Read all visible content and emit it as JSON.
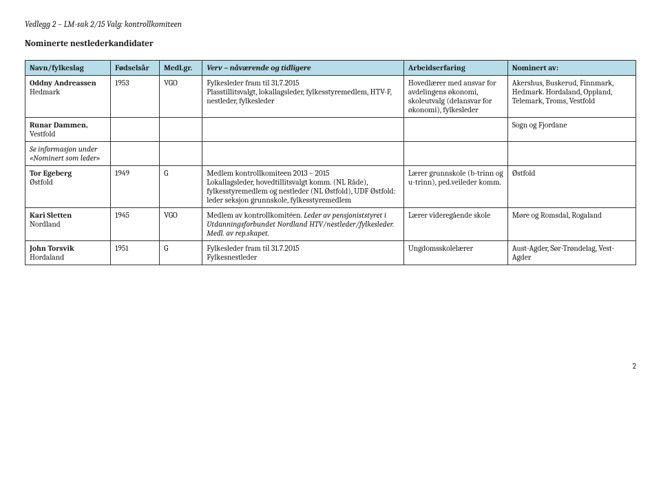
{
  "doc_header": "Vedlegg 2 – LM-sak 2/15 Valg: kontrollkomiteen",
  "subtitle": "Nominerte nestlederkandidater",
  "columns": {
    "c0": "Navn/fylkeslag",
    "c1": "Fødselsår",
    "c2": "Medl.gr.",
    "c3": "Verv – nåværende og tidligere",
    "c4": "Arbeidserfaring",
    "c5": "Nominert av:"
  },
  "col_widths": [
    "14%",
    "8%",
    "7%",
    "33%",
    "17%",
    "21%"
  ],
  "header_bg": "#b6dde8",
  "rows": {
    "r0": {
      "name": "Oddny Andreassen\nHedmark",
      "year": "1953",
      "grp": "VGO",
      "verv": "Fylkesleder fram til 31.7.2015\nPlasstillitsvalgt, lokallagsleder, fylkesstyremedlem, HTV-F, nestleder, fylkesleder",
      "exp": "Hovedlærer med ansvar for avdelingens økonomi, skoleutvalg (delansvar for økonomi), fylkesleder",
      "nom": "Akershus, Buskerud, Finnmark, Hedmark. Hordaland, Oppland, Telemark, Troms, Vestfold"
    },
    "r1": {
      "name": "Runar Dammen,\nVestfold",
      "year": "",
      "grp": "",
      "verv": "",
      "exp": "",
      "nom": "Sogn og Fjordane"
    },
    "section_label": "Se informasjon under «Nominert som leder»",
    "r2": {
      "name": "Tor Egeberg\nØstfold",
      "year": "1949",
      "grp": "G",
      "verv": "Medlem kontrollkomiteen 2013 – 2015\nLokallagsleder, hovedtillitsvalgt komm. (NL Råde), fylkesstyremedlem og nestleder (NL Østfold), UDF Østfold: leder seksjon grunnskole, fylkesstyremedlem",
      "exp": "Lærer grunnskole (b-trinn og u-trinn), ped.veileder komm.",
      "nom": "Østfold"
    },
    "r3": {
      "name": "Kari Sletten\nNordland",
      "year": "1945",
      "grp": "VGO",
      "verv_plain": "Medlem av kontrollkomitéen. ",
      "verv_italic": "Leder av pensjoniststyret i Utdanningsforbundet Nordland HTV/nestleder/fylkesleder. Medl. av rep.skapet.",
      "exp": "Lærer videregående skole",
      "nom": "Møre og Romsdal, Rogaland"
    },
    "r4": {
      "name": "John Torsvik\nHordaland",
      "year": "1951",
      "grp": "G",
      "verv": "Fylkesleder fram til 31.7.2015\nFylkesnestleder",
      "exp": "Ungdomsskolelærer",
      "nom": "Aust-Agder, Sør-Trøndelag, Vest-Agder"
    }
  },
  "page_number": "2"
}
